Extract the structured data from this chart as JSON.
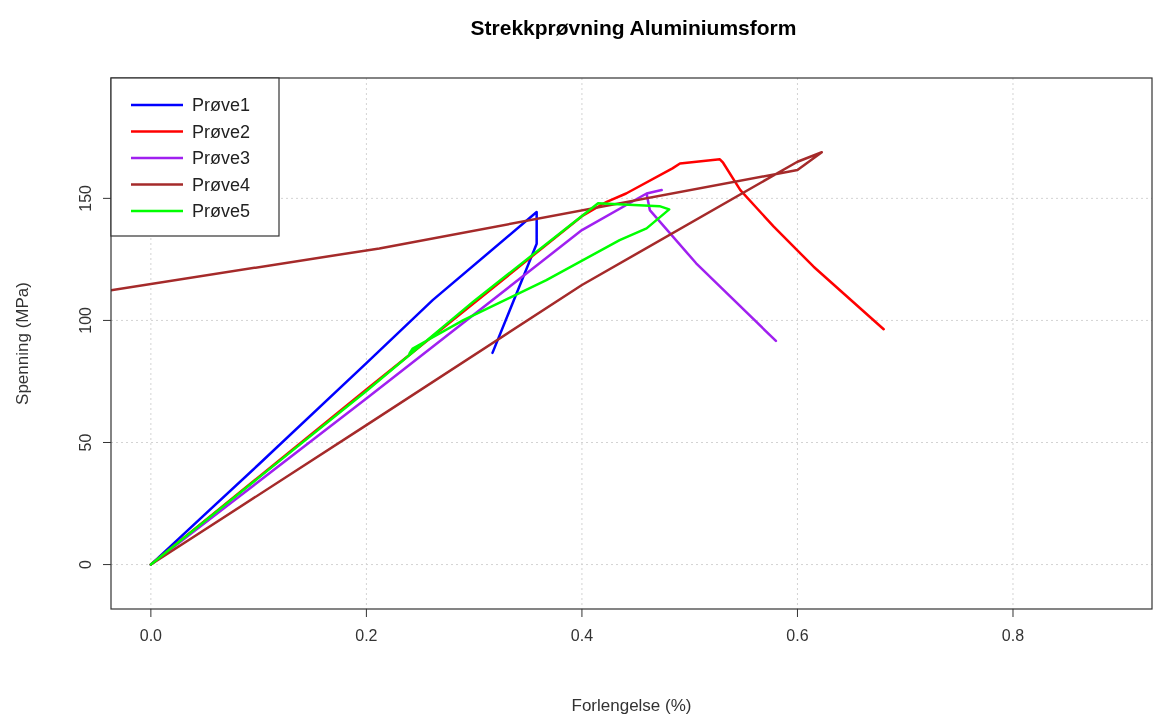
{
  "chart_data": {
    "type": "line",
    "title": "Strekkprøvning Aluminiumsform",
    "xlabel": "Forlengelse (%)",
    "ylabel": "Spenning (MPa)",
    "xlim": [
      -0.037,
      0.929
    ],
    "ylim": [
      -18.2,
      199.3
    ],
    "xticks": [
      {
        "value": 0,
        "label": "0.0"
      },
      {
        "value": 0.2,
        "label": "0.2"
      },
      {
        "value": 0.4,
        "label": "0.4"
      },
      {
        "value": 0.6,
        "label": "0.6"
      },
      {
        "value": 0.8,
        "label": "0.8"
      }
    ],
    "yticks": [
      0,
      50,
      100,
      150
    ],
    "grid": true,
    "legend": "top left",
    "line_style": "solid",
    "marker": "none",
    "series": [
      {
        "name": "Prøve1",
        "color": "#0000ff",
        "x": [
          0,
          0.1,
          0.2,
          0.2615,
          0.358,
          0.358,
          0.317
        ],
        "values": [
          0,
          41,
          82.5,
          108.3,
          144.4,
          131.4,
          86.7
        ]
      },
      {
        "name": "Prøve2",
        "color": "#ff0000",
        "x": [
          0,
          0.2,
          0.4,
          0.423,
          0.441,
          0.484,
          0.491,
          0.528,
          0.531,
          0.547,
          0.578,
          0.615,
          0.68
        ],
        "values": [
          0,
          71.7,
          142.7,
          148.6,
          152,
          162.3,
          164.3,
          166,
          164.6,
          153.4,
          138.4,
          122,
          96.4
        ]
      },
      {
        "name": "Prøve3",
        "color": "#a020f0",
        "x": [
          0,
          0.2,
          0.4,
          0.46,
          0.474,
          0.46,
          0.463,
          0.506,
          0.58
        ],
        "values": [
          0,
          68,
          137,
          152,
          153.4,
          152,
          145.2,
          123.4,
          91.6
        ]
      },
      {
        "name": "Prøve4",
        "color": "#a52a2a",
        "x": [
          0,
          0.2,
          0.4,
          0.6,
          0.6226,
          0.6,
          0.212,
          -0.037
        ],
        "values": [
          0,
          57.1,
          114.5,
          165,
          168.9,
          161.6,
          129.5,
          112.4
        ]
      },
      {
        "name": "Prøve5",
        "color": "#00ff00",
        "x": [
          0,
          0.2,
          0.3,
          0.415,
          0.472,
          0.481,
          0.46,
          0.435,
          0.367,
          0.29,
          0.243,
          0.24,
          0.252
        ],
        "values": [
          0,
          71.1,
          108,
          148,
          146.8,
          145.5,
          137.7,
          132.9,
          116.5,
          100.1,
          88.5,
          86.5,
          90.6
        ]
      }
    ]
  }
}
